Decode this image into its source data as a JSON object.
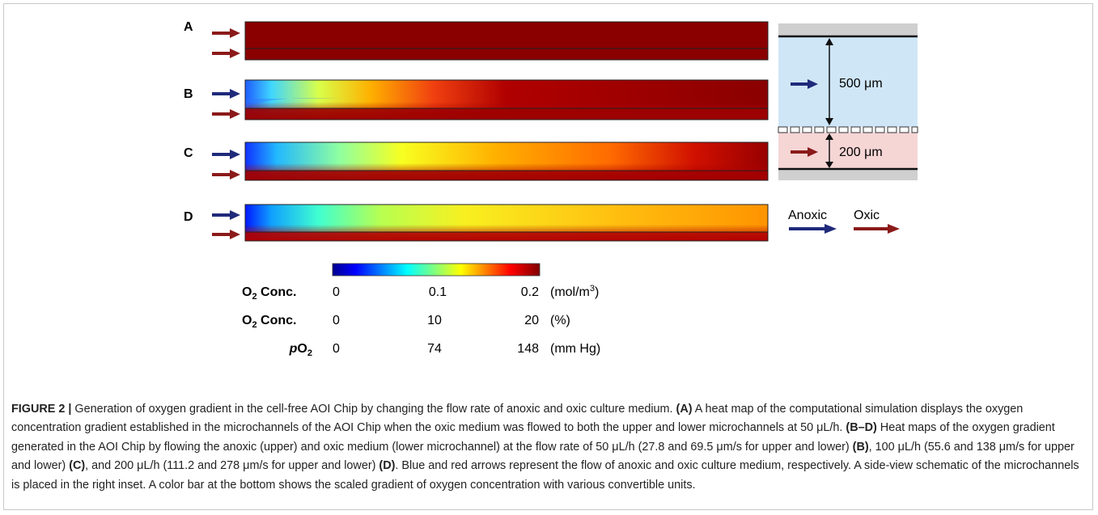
{
  "figure": {
    "panels": [
      {
        "label": "A",
        "flow_anoxic": "",
        "flow_oxic": ""
      },
      {
        "label": "B"
      },
      {
        "label": "C"
      },
      {
        "label": "D"
      }
    ],
    "inset": {
      "upper_height": "500 μm",
      "lower_height": "200 μm",
      "legend_anoxic": "Anoxic",
      "legend_oxic": "Oxic"
    },
    "colorbar": {
      "rows": [
        {
          "label_main": "O",
          "label_sub": "2",
          "label_rest": " Conc.",
          "italic_prefix": "",
          "ticks": [
            "0",
            "0.1",
            "0.2"
          ],
          "unit": "(mol/m",
          "unit_sup": "3",
          "unit_end": ")"
        },
        {
          "label_main": "O",
          "label_sub": "2",
          "label_rest": " Conc.",
          "italic_prefix": "",
          "ticks": [
            "0",
            "10",
            "20"
          ],
          "unit": "(%)",
          "unit_sup": "",
          "unit_end": ""
        },
        {
          "label_main": "O",
          "label_sub": "2",
          "label_rest": "",
          "italic_prefix": "p",
          "ticks": [
            "0",
            "74",
            "148"
          ],
          "unit": "(mm Hg)",
          "unit_sup": "",
          "unit_end": ""
        }
      ]
    },
    "colors": {
      "anoxic_arrow": "#1f2a7a",
      "oxic_arrow": "#8b1a1a",
      "inset_upper": "#cfe6f7",
      "inset_lower": "#f6d5d5",
      "inset_wall": "#cfcfcf"
    }
  },
  "caption": {
    "title": "FIGURE 2 |",
    "seg1": " Generation of oxygen gradient in the cell-free AOI Chip by changing the flow rate of anoxic and oxic culture medium. ",
    "lblA": "(A)",
    "seg2": " A heat map of the computational simulation displays the oxygen concentration gradient established in the microchannels of the AOI Chip when the oxic medium was flowed to both the upper and lower microchannels at 50 μL/h. ",
    "lblBD": "(B–D)",
    "seg3": " Heat maps of the oxygen gradient generated in the AOI Chip by flowing the anoxic (upper) and oxic medium (lower microchannel) at the flow rate of 50 μL/h (27.8 and 69.5 μm/s for upper and lower) ",
    "lblB": "(B)",
    "seg4": ", 100 μL/h (55.6 and 138 μm/s for upper and lower) ",
    "lblC": "(C)",
    "seg5": ", and 200 μL/h (111.2 and 278 μm/s for upper and lower) ",
    "lblD": "(D)",
    "seg6": ". Blue and red arrows represent the flow of anoxic and oxic culture medium, respectively. A side-view schematic of the microchannels is placed in the right inset. A color bar at the bottom shows the scaled gradient of oxygen concentration with various convertible units."
  }
}
